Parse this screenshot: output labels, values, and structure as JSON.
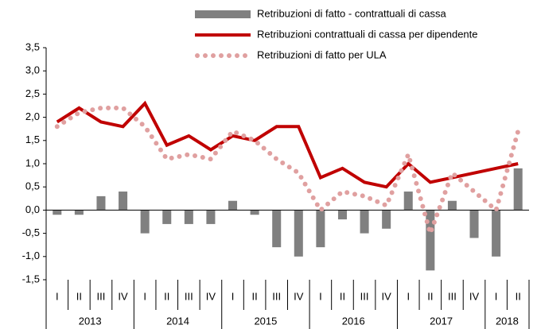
{
  "chart_data": {
    "type": "bar_line",
    "categories": [
      "I",
      "II",
      "III",
      "IV",
      "I",
      "II",
      "III",
      "IV",
      "I",
      "II",
      "III",
      "IV",
      "I",
      "II",
      "III",
      "IV",
      "I",
      "II",
      "III",
      "IV",
      "I",
      "II"
    ],
    "years": [
      "2013",
      "2014",
      "2015",
      "2016",
      "2017",
      "2018"
    ],
    "series": [
      {
        "name": "Retribuzioni di fatto - contrattuali di cassa",
        "kind": "bar",
        "color": "#808080",
        "values": [
          -0.1,
          -0.1,
          0.3,
          0.4,
          -0.5,
          -0.3,
          -0.3,
          -0.3,
          0.2,
          -0.1,
          -0.8,
          -1.0,
          -0.8,
          -0.2,
          -0.5,
          -0.4,
          0.4,
          -1.3,
          0.2,
          -0.6,
          -1.0,
          0.9
        ]
      },
      {
        "name": "Retribuzioni contrattuali di cassa per dipendente",
        "kind": "line",
        "color": "#c00000",
        "values": [
          1.9,
          2.2,
          1.9,
          1.8,
          2.3,
          1.4,
          1.6,
          1.3,
          1.6,
          1.5,
          1.8,
          1.8,
          0.7,
          0.9,
          0.6,
          0.5,
          1.0,
          0.6,
          0.7,
          0.8,
          0.9,
          1.0
        ]
      },
      {
        "name": "Retribuzioni di fatto per ULA",
        "kind": "dotted",
        "color": "#e0a0a0",
        "values": [
          1.8,
          2.1,
          2.2,
          2.2,
          1.8,
          1.1,
          1.2,
          1.1,
          1.7,
          1.5,
          1.1,
          0.8,
          0.0,
          0.4,
          0.3,
          0.1,
          1.2,
          -0.5,
          0.8,
          0.4,
          0.0,
          1.7
        ]
      }
    ],
    "ylim": [
      -1.5,
      3.5
    ],
    "yticks": [
      {
        "value": -1.5,
        "label": "-1,5"
      },
      {
        "value": -1.0,
        "label": "-1,0"
      },
      {
        "value": -0.5,
        "label": "-0,5"
      },
      {
        "value": 0,
        "label": "0,0"
      },
      {
        "value": 0.5,
        "label": "0,5"
      },
      {
        "value": 1.0,
        "label": "1,0"
      },
      {
        "value": 1.5,
        "label": "1,5"
      },
      {
        "value": 2.0,
        "label": "2,0"
      },
      {
        "value": 2.5,
        "label": "2,5"
      },
      {
        "value": 3.0,
        "label": "3,0"
      },
      {
        "value": 3.5,
        "label": "3,5"
      }
    ]
  }
}
